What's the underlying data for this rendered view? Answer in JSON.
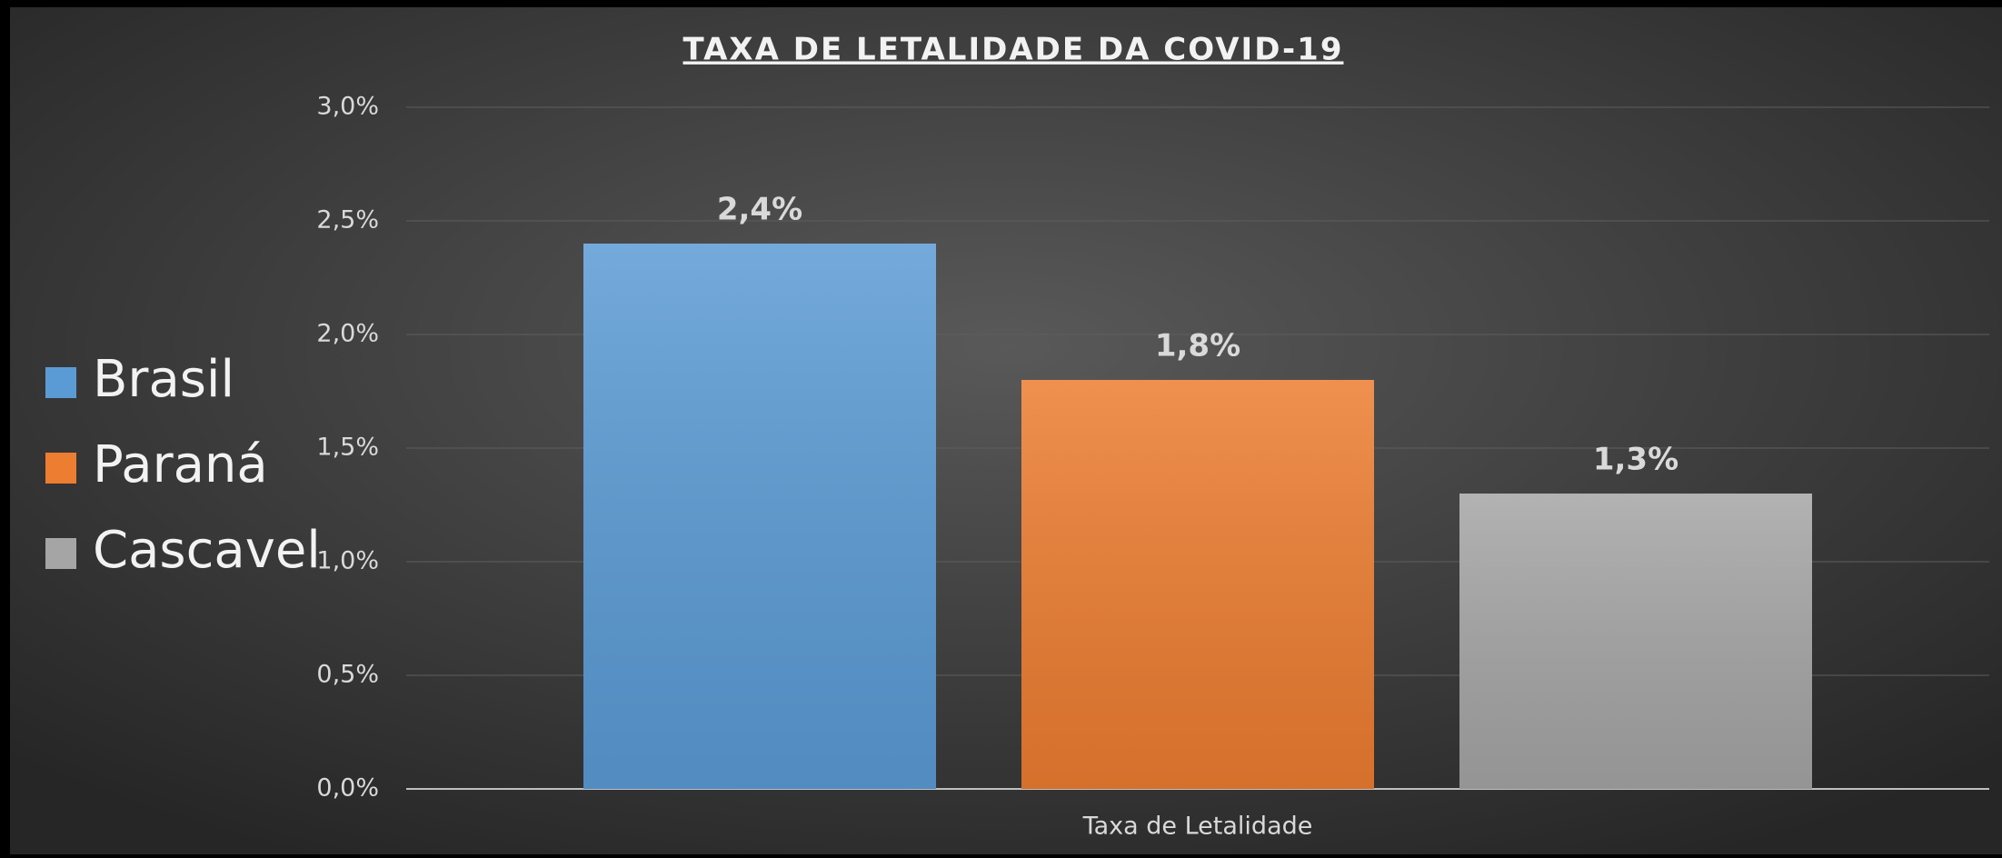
{
  "chart_data": {
    "type": "bar",
    "title": "TAXA DE LETALIDADE DA COVID-19",
    "categories": [
      "Taxa de Letalidade"
    ],
    "series": [
      {
        "name": "Brasil",
        "color": "#5b9bd5",
        "values": [
          2.4
        ],
        "value_labels": [
          "2,4%"
        ]
      },
      {
        "name": "Paraná",
        "color": "#ed7d31",
        "values": [
          1.8
        ],
        "value_labels": [
          "1,8%"
        ]
      },
      {
        "name": "Cascavel",
        "color": "#a5a5a5",
        "values": [
          1.3
        ],
        "value_labels": [
          "1,3%"
        ]
      }
    ],
    "ylim": [
      0,
      3
    ],
    "yticks": [
      {
        "value": 0,
        "label": "0,0%"
      },
      {
        "value": 0.5,
        "label": "0,5%"
      },
      {
        "value": 1,
        "label": "1,0%"
      },
      {
        "value": 1.5,
        "label": "1,5%"
      },
      {
        "value": 2,
        "label": "2,0%"
      },
      {
        "value": 2.5,
        "label": "2,5%"
      },
      {
        "value": 3,
        "label": "3,0%"
      }
    ],
    "grid": true,
    "legend": "left"
  }
}
